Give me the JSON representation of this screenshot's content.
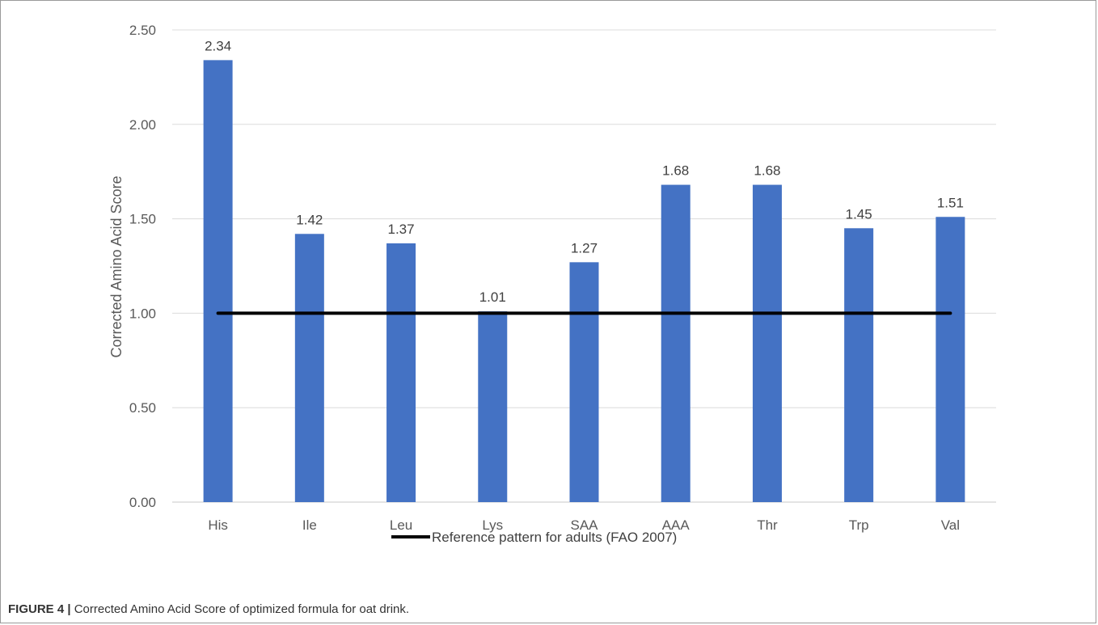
{
  "chart_data": {
    "type": "bar",
    "categories": [
      "His",
      "Ile",
      "Leu",
      "Lys",
      "SAA",
      "AAA",
      "Thr",
      "Trp",
      "Val"
    ],
    "values": [
      2.34,
      1.42,
      1.37,
      1.01,
      1.27,
      1.68,
      1.68,
      1.45,
      1.51
    ],
    "data_labels": [
      "2.34",
      "1.42",
      "1.37",
      "1.01",
      "1.27",
      "1.68",
      "1.68",
      "1.45",
      "1.51"
    ],
    "ylabel": "Corrected Amino Acid Score",
    "xlabel": "",
    "ylim": [
      0,
      2.5
    ],
    "yticks": [
      "0.00",
      "0.50",
      "1.00",
      "1.50",
      "2.00",
      "2.50"
    ],
    "reference_line": {
      "value": 1.0,
      "label": "Reference pattern for adults (FAO 2007)",
      "color": "#000000"
    },
    "bar_color": "#4472C4",
    "grid": true,
    "legend_position": "bottom"
  },
  "caption": {
    "figure_label": "FIGURE 4 |",
    "text": " Corrected Amino Acid Score of optimized formula for oat drink."
  }
}
